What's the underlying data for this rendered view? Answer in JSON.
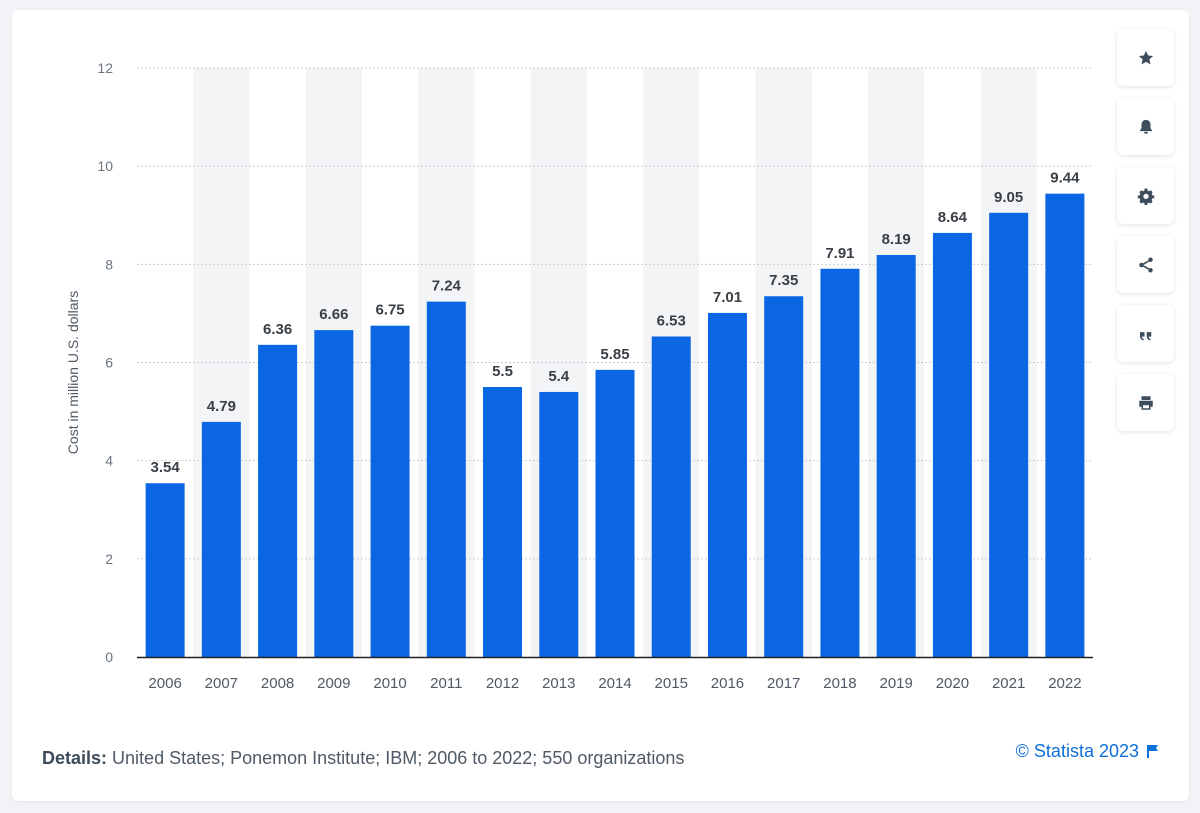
{
  "chart_data": {
    "type": "bar",
    "categories": [
      "2006",
      "2007",
      "2008",
      "2009",
      "2010",
      "2011",
      "2012",
      "2013",
      "2014",
      "2015",
      "2016",
      "2017",
      "2018",
      "2019",
      "2020",
      "2021",
      "2022"
    ],
    "values": [
      3.54,
      4.79,
      6.36,
      6.66,
      6.75,
      7.24,
      5.5,
      5.4,
      5.85,
      6.53,
      7.01,
      7.35,
      7.91,
      8.19,
      8.64,
      9.05,
      9.44
    ],
    "data_labels": [
      "3.54",
      "4.79",
      "6.36",
      "6.66",
      "6.75",
      "7.24",
      "5.5",
      "5.4",
      "5.85",
      "6.53",
      "7.01",
      "7.35",
      "7.91",
      "8.19",
      "8.64",
      "9.05",
      "9.44"
    ],
    "ylabel": "Cost in million U.S. dollars",
    "xlabel": "",
    "ylim": [
      0,
      12
    ],
    "yticks": [
      0,
      2,
      4,
      6,
      8,
      10,
      12
    ],
    "grid": true,
    "bar_color": "#0b66e4"
  },
  "footer": {
    "details_label": "Details:",
    "details_text": "United States; Ponemon Institute; IBM; 2006 to 2022; 550 organizations",
    "copyright": "© Statista 2023"
  },
  "sidebar": {
    "buttons": [
      {
        "icon": "star-icon"
      },
      {
        "icon": "bell-icon"
      },
      {
        "icon": "gear-icon"
      },
      {
        "icon": "share-icon"
      },
      {
        "icon": "quote-icon"
      },
      {
        "icon": "print-icon"
      }
    ]
  },
  "colors": {
    "accent": "#0d6fd9",
    "bar": "#0b66e4",
    "band": "#f3f4f6"
  }
}
